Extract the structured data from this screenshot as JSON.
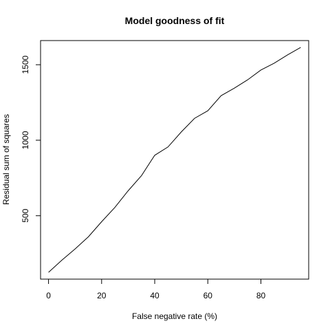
{
  "chart_data": {
    "type": "line",
    "title": "Model goodness of fit",
    "xlabel": "False negative rate (%)",
    "ylabel": "Residual sum of squares",
    "xlim": [
      -3,
      98
    ],
    "ylim": [
      80,
      1660
    ],
    "xticks": [
      0,
      20,
      40,
      60,
      80
    ],
    "yticks": [
      500,
      1000,
      1500
    ],
    "grid": false,
    "series": [
      {
        "x": [
          0,
          5,
          10,
          15,
          20,
          25,
          30,
          35,
          40,
          45,
          50,
          55,
          60,
          65,
          70,
          75,
          80,
          85,
          90,
          95
        ],
        "y": [
          125,
          205,
          280,
          360,
          460,
          555,
          665,
          765,
          900,
          955,
          1055,
          1145,
          1195,
          1295,
          1345,
          1400,
          1465,
          1510,
          1565,
          1615
        ]
      }
    ]
  }
}
